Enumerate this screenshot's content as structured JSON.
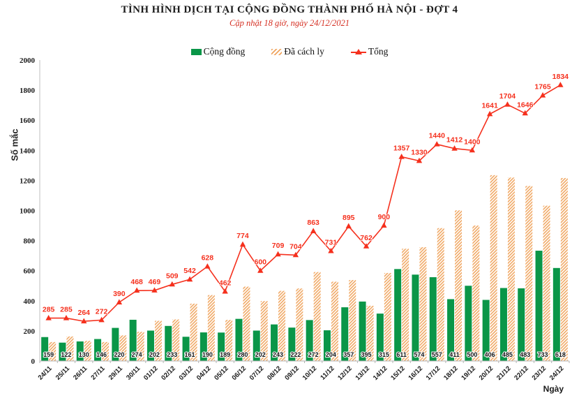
{
  "header": {
    "title": "TÌNH HÌNH DỊCH TẠI CỘNG ĐỒNG THÀNH PHỐ HÀ NỘI - ĐỢT 4",
    "subtitle": "Cập nhật 18 giờ, ngày 24/12/2021"
  },
  "legend": {
    "items": [
      {
        "label": "Cộng đồng",
        "swatch": "green-bar",
        "color": "#0a9648"
      },
      {
        "label": "Đã cách ly",
        "swatch": "hatched-bar",
        "color": "#f0a55f"
      },
      {
        "label": "Tổng",
        "swatch": "line-marker",
        "color": "#f5301d"
      }
    ]
  },
  "colors": {
    "community_bar": "#0a9648",
    "isolated_bar_hatch": "#f0a55f",
    "total_line": "#f5301d",
    "axis": "#bfbfbf",
    "subtitle_red": "#d52f22"
  },
  "chart_data": {
    "type": "bar",
    "title": "TÌNH HÌNH DỊCH TẠI CỘNG ĐỒNG THÀNH PHỐ HÀ NỘI - ĐỢT 4",
    "subtitle": "Cập nhật 18 giờ, ngày 24/12/2021",
    "xlabel": "Ngày",
    "ylabel": "Số mắc",
    "ylim": [
      0,
      2000
    ],
    "ytick_step": 200,
    "grid": false,
    "legend_position": "top",
    "categories": [
      "24/11",
      "25/11",
      "26/11",
      "27/11",
      "29/11",
      "30/11",
      "01/12",
      "02/12",
      "03/12",
      "04/12",
      "05/12",
      "06/12",
      "07/12",
      "08/12",
      "09/12",
      "10/12",
      "11/12",
      "12/12",
      "13/12",
      "14/12",
      "15/12",
      "16/12",
      "17/12",
      "18/12",
      "19/12",
      "20/12",
      "21/12",
      "22/12",
      "23/12",
      "24/12"
    ],
    "series": [
      {
        "name": "Cộng đồng",
        "type": "bar",
        "color": "#0a9648",
        "labels_shown": true,
        "values": [
          159,
          122,
          130,
          146,
          220,
          274,
          202,
          233,
          161,
          190,
          189,
          280,
          202,
          243,
          222,
          272,
          204,
          357,
          395,
          315,
          611,
          574,
          557,
          411,
          500,
          406,
          485,
          483,
          733,
          618
        ]
      },
      {
        "name": "Đã cách ly",
        "type": "bar",
        "style": "hatched",
        "color": "#f0a55f",
        "labels_shown": false,
        "values": [
          126,
          163,
          134,
          126,
          170,
          194,
          267,
          276,
          381,
          438,
          273,
          494,
          398,
          466,
          482,
          591,
          527,
          538,
          367,
          585,
          746,
          756,
          883,
          1001,
          900,
          1235,
          1219,
          1163,
          1032,
          1216
        ]
      },
      {
        "name": "Tổng",
        "type": "line",
        "color": "#f5301d",
        "marker": "triangle-up",
        "labels_shown": true,
        "values": [
          285,
          285,
          264,
          272,
          390,
          468,
          469,
          509,
          542,
          628,
          462,
          774,
          600,
          709,
          704,
          863,
          731,
          895,
          762,
          900,
          1357,
          1330,
          1440,
          1412,
          1400,
          1641,
          1704,
          1646,
          1765,
          1834
        ]
      }
    ]
  }
}
